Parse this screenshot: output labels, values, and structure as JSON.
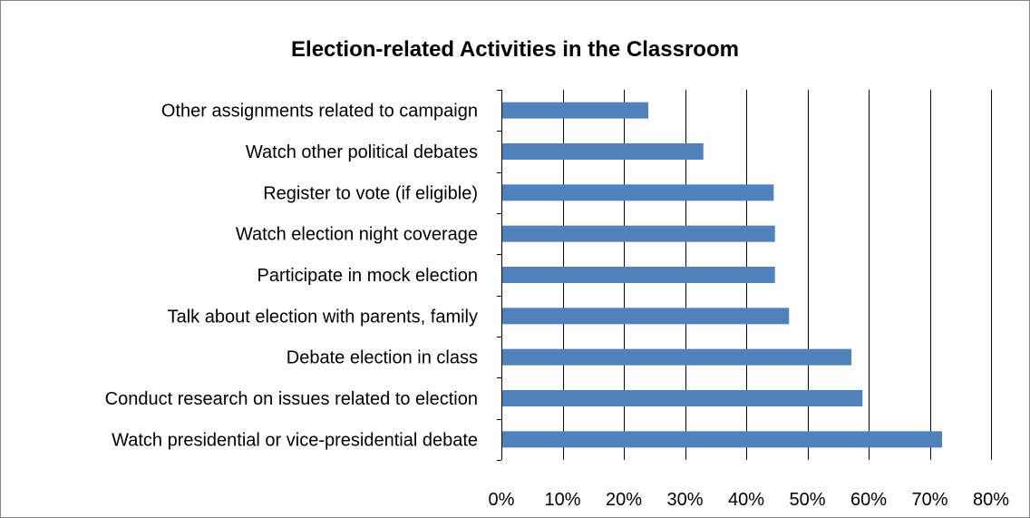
{
  "chart_data": {
    "type": "bar",
    "orientation": "horizontal",
    "title": "Election-related Activities in the Classroom",
    "xlabel": "",
    "ylabel": "",
    "categories": [
      "Other assignments related to campaign",
      "Watch other political debates",
      "Register to vote (if eligible)",
      "Watch election night coverage",
      "Participate in mock election",
      "Talk about election with parents, family",
      "Debate election in class",
      "Conduct research on issues related to election",
      "Watch presidential or vice-presidential debate"
    ],
    "values": [
      0.24,
      0.33,
      0.445,
      0.447,
      0.447,
      0.47,
      0.572,
      0.59,
      0.72
    ],
    "xlim": [
      0,
      0.8
    ],
    "xticks": [
      0,
      0.1,
      0.2,
      0.3,
      0.4,
      0.5,
      0.6,
      0.7,
      0.8
    ],
    "xtick_labels": [
      "0%",
      "10%",
      "20%",
      "30%",
      "40%",
      "50%",
      "60%",
      "70%",
      "80%"
    ],
    "grid": "vertical",
    "legend": "none",
    "bar_color": "#4f81bd",
    "gridline_color": "#000000"
  }
}
